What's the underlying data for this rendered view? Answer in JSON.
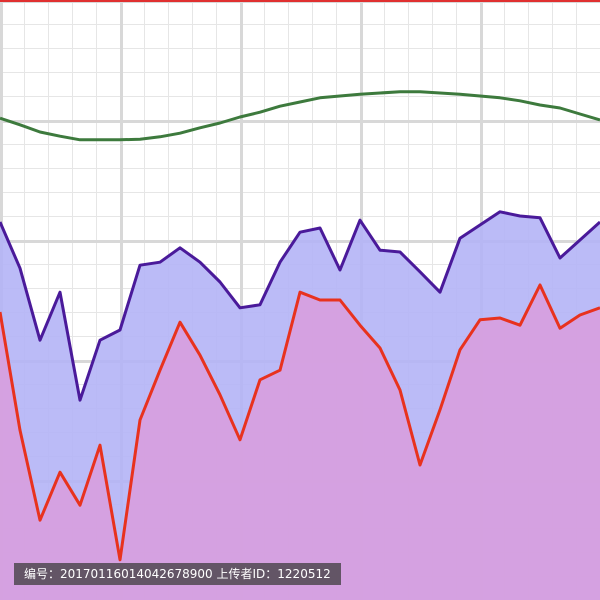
{
  "chart_data": {
    "type": "area",
    "categories": [
      null,
      null,
      null,
      null,
      null,
      null,
      null,
      null,
      null,
      null,
      null,
      null,
      null,
      null,
      null,
      null,
      null,
      null,
      null,
      null,
      null,
      null,
      null,
      null,
      null,
      null,
      null,
      null,
      null,
      null,
      null
    ],
    "ylim": [
      0,
      100
    ],
    "series": [
      {
        "color": "#3d7a3d",
        "fill": false,
        "values": [
          80.3,
          79.2,
          78.0,
          77.3,
          76.7,
          76.7,
          76.7,
          76.8,
          77.2,
          77.8,
          78.7,
          79.5,
          80.5,
          81.3,
          82.3,
          83.0,
          83.7,
          84.0,
          84.3,
          84.5,
          84.7,
          84.7,
          84.5,
          84.3,
          84.0,
          83.7,
          83.2,
          82.5,
          82.0,
          81.0,
          80.0
        ]
      },
      {
        "color": "#4a1a9a",
        "fill": "#b4b4f6",
        "values": [
          63.0,
          55.3,
          43.3,
          51.3,
          33.3,
          43.3,
          45.0,
          55.8,
          56.3,
          58.7,
          56.3,
          53.0,
          48.7,
          49.2,
          56.3,
          61.3,
          62.0,
          55.0,
          63.3,
          58.3,
          58.0,
          54.7,
          51.3,
          60.3,
          62.5,
          64.7,
          64.0,
          63.7,
          57.0,
          60.0,
          63.0
        ]
      },
      {
        "color": "#e8321e",
        "fill": "#d89ede",
        "values": [
          48.0,
          28.3,
          13.3,
          21.3,
          15.8,
          25.8,
          6.7,
          30.0,
          38.3,
          46.3,
          40.8,
          34.2,
          26.7,
          36.7,
          38.3,
          51.3,
          50.0,
          50.0,
          45.8,
          42.0,
          35.0,
          22.5,
          31.7,
          41.7,
          46.7,
          47.0,
          45.8,
          52.5,
          45.3,
          47.5,
          48.7
        ]
      }
    ]
  },
  "watermark": "编号：20170116014042678900 上传者ID：1220512"
}
